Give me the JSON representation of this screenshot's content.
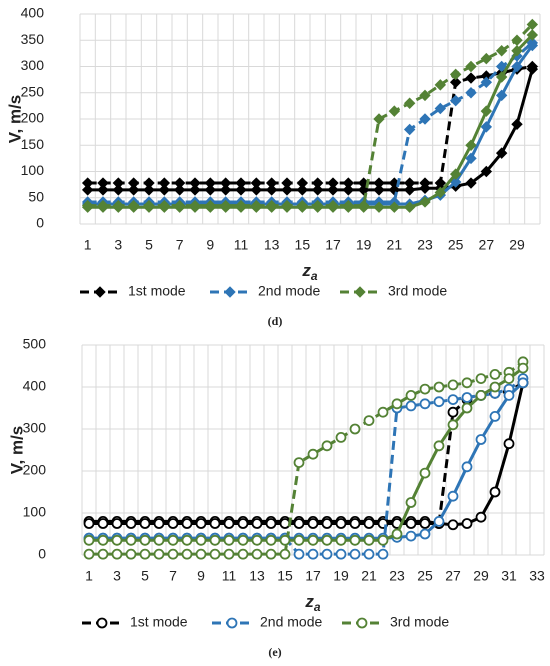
{
  "chart_data": [
    {
      "type": "line",
      "label": "(d)",
      "x_label": "z",
      "x_label_sub": "a",
      "y_label": "V, m/s",
      "marker": "diamond",
      "grid": true,
      "categories": [
        1,
        null,
        3,
        null,
        5,
        null,
        7,
        null,
        9,
        null,
        11,
        null,
        13,
        null,
        15,
        null,
        17,
        null,
        19,
        null,
        21,
        null,
        23,
        null,
        25,
        null,
        27,
        null,
        29,
        null
      ],
      "ylim": [
        0,
        400
      ],
      "yticks": [
        0,
        50,
        100,
        150,
        200,
        250,
        300,
        350,
        400
      ],
      "series": [
        {
          "name": "1st mode",
          "color": "#000000",
          "lines": [
            {
              "dash": true,
              "values": [
                78,
                78,
                78,
                78,
                78,
                78,
                78,
                78,
                78,
                78,
                78,
                78,
                78,
                78,
                78,
                78,
                78,
                78,
                78,
                78,
                78,
                78,
                78,
                78,
                270,
                278,
                282,
                288,
                295,
                300
              ]
            },
            {
              "dash": false,
              "values": [
                65,
                65,
                65,
                65,
                65,
                65,
                65,
                65,
                65,
                65,
                65,
                65,
                65,
                65,
                65,
                65,
                65,
                65,
                65,
                65,
                65,
                65,
                68,
                68,
                72,
                78,
                100,
                135,
                190,
                295
              ]
            }
          ]
        },
        {
          "name": "2nd mode",
          "color": "#2e75b6",
          "lines": [
            {
              "dash": true,
              "values": [
                42,
                42,
                42,
                42,
                42,
                42,
                42,
                42,
                42,
                42,
                42,
                42,
                42,
                42,
                42,
                42,
                42,
                42,
                42,
                42,
                42,
                180,
                200,
                220,
                235,
                250,
                270,
                300,
                320,
                345
              ]
            },
            {
              "dash": false,
              "values": [
                38,
                38,
                38,
                38,
                38,
                38,
                38,
                38,
                38,
                38,
                38,
                38,
                38,
                38,
                38,
                38,
                38,
                38,
                38,
                38,
                38,
                38,
                45,
                55,
                80,
                125,
                185,
                245,
                300,
                340
              ]
            }
          ]
        },
        {
          "name": "3rd mode",
          "color": "#548235",
          "lines": [
            {
              "dash": true,
              "values": [
                35,
                35,
                35,
                35,
                35,
                35,
                35,
                35,
                35,
                35,
                35,
                35,
                35,
                35,
                35,
                35,
                35,
                35,
                35,
                200,
                215,
                230,
                245,
                265,
                285,
                300,
                315,
                330,
                350,
                380
              ]
            },
            {
              "dash": false,
              "values": [
                32,
                32,
                32,
                32,
                32,
                32,
                32,
                32,
                32,
                32,
                32,
                32,
                32,
                32,
                32,
                32,
                32,
                32,
                32,
                32,
                32,
                32,
                42,
                60,
                95,
                150,
                215,
                280,
                330,
                360
              ]
            }
          ]
        }
      ]
    },
    {
      "type": "line",
      "label": "(e)",
      "x_label": "z",
      "x_label_sub": "a",
      "y_label": "V, m/s",
      "marker": "circle",
      "grid": true,
      "categories": [
        1,
        null,
        3,
        null,
        5,
        null,
        7,
        null,
        9,
        null,
        11,
        null,
        13,
        null,
        15,
        null,
        17,
        null,
        19,
        null,
        21,
        null,
        23,
        null,
        25,
        null,
        27,
        null,
        29,
        null,
        31,
        null,
        33
      ],
      "ylim": [
        0,
        500
      ],
      "yticks": [
        0,
        100,
        200,
        300,
        400,
        500
      ],
      "series": [
        {
          "name": "1st mode",
          "color": "#000000",
          "lines": [
            {
              "dash": true,
              "values": [
                80,
                80,
                80,
                80,
                80,
                80,
                80,
                80,
                80,
                80,
                80,
                80,
                80,
                80,
                80,
                80,
                80,
                80,
                80,
                80,
                80,
                80,
                80,
                80,
                80,
                75,
                340,
                370,
                380,
                385,
                390,
                410,
                null
              ]
            },
            {
              "dash": false,
              "values": [
                75,
                75,
                75,
                75,
                75,
                75,
                75,
                75,
                75,
                75,
                75,
                75,
                75,
                75,
                75,
                75,
                75,
                75,
                75,
                75,
                75,
                75,
                75,
                75,
                75,
                75,
                72,
                75,
                90,
                150,
                265,
                410,
                null
              ]
            }
          ]
        },
        {
          "name": "2nd mode",
          "color": "#2e75b6",
          "lines": [
            {
              "dash": true,
              "values": [
                40,
                40,
                40,
                40,
                40,
                40,
                40,
                40,
                40,
                40,
                40,
                40,
                40,
                40,
                40,
                2,
                2,
                2,
                2,
                2,
                2,
                2,
                350,
                355,
                360,
                365,
                370,
                375,
                380,
                385,
                395,
                420,
                null
              ]
            },
            {
              "dash": false,
              "values": [
                40,
                40,
                40,
                40,
                40,
                40,
                40,
                40,
                40,
                40,
                40,
                40,
                40,
                40,
                40,
                40,
                40,
                40,
                40,
                40,
                40,
                40,
                42,
                45,
                50,
                80,
                140,
                210,
                275,
                330,
                380,
                410,
                null
              ]
            }
          ]
        },
        {
          "name": "3rd mode",
          "color": "#548235",
          "lines": [
            {
              "dash": true,
              "values": [
                2,
                2,
                2,
                2,
                2,
                2,
                2,
                2,
                2,
                2,
                2,
                2,
                2,
                2,
                2,
                220,
                240,
                260,
                280,
                300,
                320,
                340,
                360,
                380,
                395,
                400,
                405,
                410,
                420,
                430,
                435,
                460,
                null
              ]
            },
            {
              "dash": false,
              "values": [
                35,
                35,
                35,
                35,
                35,
                35,
                35,
                35,
                35,
                35,
                35,
                35,
                35,
                35,
                35,
                35,
                35,
                35,
                35,
                35,
                35,
                35,
                50,
                125,
                195,
                260,
                310,
                350,
                380,
                400,
                420,
                445,
                null
              ]
            }
          ]
        }
      ]
    }
  ]
}
